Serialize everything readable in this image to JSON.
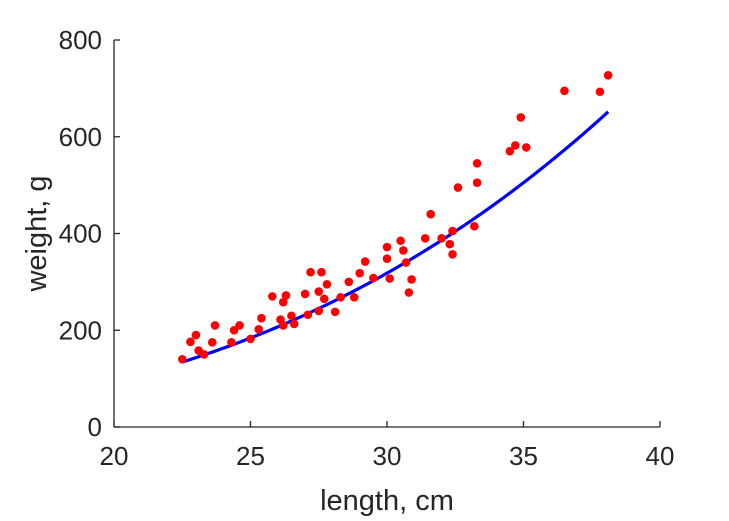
{
  "chart_data": {
    "type": "scatter",
    "title": "",
    "xlabel": "length, cm",
    "ylabel": "weight, g",
    "xlim": [
      20,
      40
    ],
    "ylim": [
      0,
      800
    ],
    "xticks": [
      "20",
      "25",
      "30",
      "35",
      "40"
    ],
    "yticks": [
      "0",
      "200",
      "400",
      "600",
      "800"
    ],
    "grid": false,
    "legend": "none",
    "colors": {
      "points": "#ff0000",
      "fit": "#0000ff",
      "axis": "#262626"
    },
    "series": [
      {
        "kind": "scatter",
        "points": [
          [
            22.5,
            140
          ],
          [
            22.8,
            176
          ],
          [
            23.0,
            190
          ],
          [
            23.1,
            158
          ],
          [
            23.3,
            150
          ],
          [
            23.6,
            175
          ],
          [
            23.7,
            210
          ],
          [
            24.3,
            175
          ],
          [
            24.4,
            200
          ],
          [
            24.6,
            210
          ],
          [
            25.0,
            182
          ],
          [
            25.3,
            202
          ],
          [
            25.4,
            225
          ],
          [
            25.8,
            270
          ],
          [
            26.1,
            222
          ],
          [
            26.2,
            258
          ],
          [
            26.2,
            210
          ],
          [
            26.3,
            272
          ],
          [
            26.5,
            230
          ],
          [
            26.6,
            213
          ],
          [
            27.0,
            275
          ],
          [
            27.1,
            232
          ],
          [
            27.2,
            320
          ],
          [
            27.5,
            240
          ],
          [
            27.5,
            280
          ],
          [
            27.6,
            320
          ],
          [
            27.7,
            265
          ],
          [
            27.8,
            295
          ],
          [
            28.1,
            238
          ],
          [
            28.3,
            268
          ],
          [
            28.6,
            300
          ],
          [
            28.8,
            268
          ],
          [
            29.0,
            318
          ],
          [
            29.2,
            342
          ],
          [
            29.5,
            308
          ],
          [
            30.0,
            372
          ],
          [
            30.0,
            348
          ],
          [
            30.1,
            307
          ],
          [
            30.5,
            385
          ],
          [
            30.6,
            365
          ],
          [
            30.7,
            340
          ],
          [
            30.8,
            278
          ],
          [
            30.9,
            305
          ],
          [
            31.4,
            390
          ],
          [
            31.6,
            440
          ],
          [
            32.0,
            390
          ],
          [
            32.3,
            378
          ],
          [
            32.4,
            357
          ],
          [
            32.4,
            405
          ],
          [
            32.6,
            495
          ],
          [
            33.2,
            415
          ],
          [
            33.3,
            505
          ],
          [
            33.3,
            545
          ],
          [
            34.5,
            570
          ],
          [
            34.7,
            582
          ],
          [
            34.9,
            640
          ],
          [
            35.1,
            578
          ],
          [
            36.5,
            695
          ],
          [
            37.8,
            693
          ],
          [
            38.1,
            727
          ]
        ]
      },
      {
        "kind": "line",
        "fit": {
          "a": 0.01178,
          "b": 3.0
        },
        "x_range": [
          22.5,
          38.1
        ]
      }
    ]
  }
}
